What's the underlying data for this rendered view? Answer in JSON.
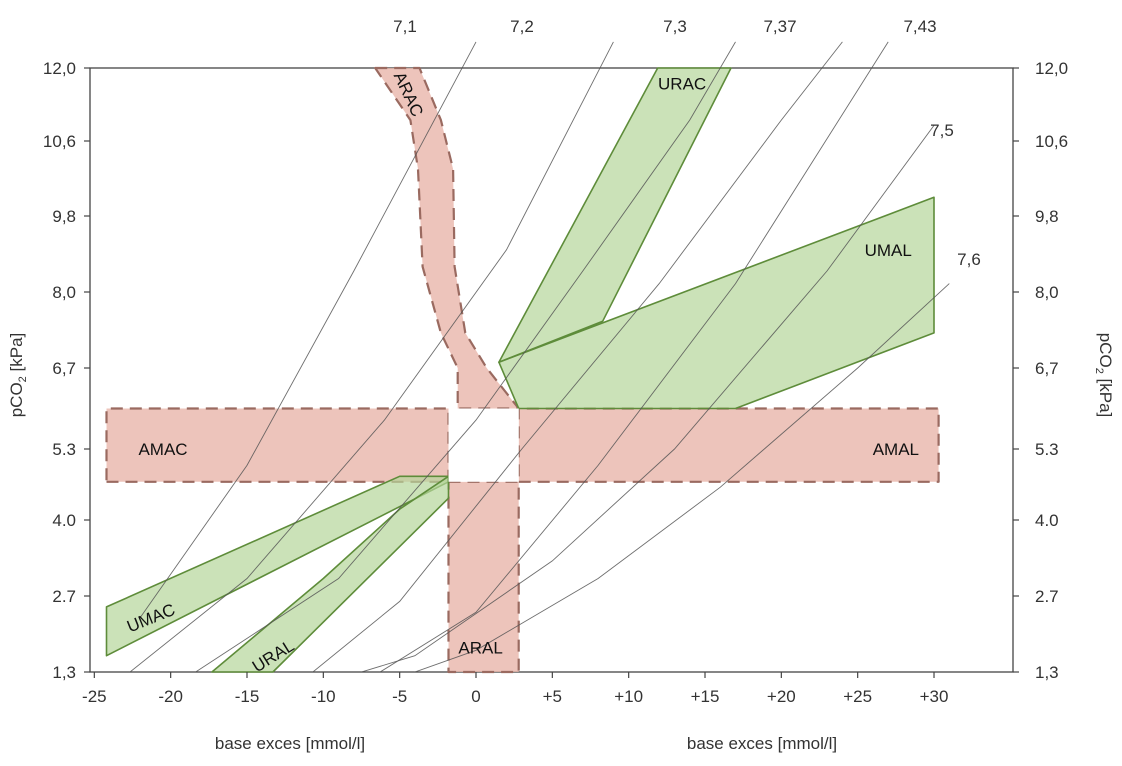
{
  "chart_data": {
    "type": "area",
    "title": "",
    "xlabel": "base exces [mmol/l]",
    "ylabel": "pCO2 [kPa]",
    "x_ticks": [
      "-25",
      "-20",
      "-15",
      "-10",
      "-5",
      "0",
      "+5",
      "+10",
      "+15",
      "+20",
      "+25",
      "+30"
    ],
    "x_tick_values": [
      -25,
      -20,
      -15,
      -10,
      -5,
      0,
      5,
      10,
      15,
      20,
      25,
      30
    ],
    "y_ticks": [
      "1,3",
      "2.7",
      "4.0",
      "5.3",
      "6,7",
      "8,0",
      "9,8",
      "10,6",
      "12,0"
    ],
    "xlim": [
      -26,
      35
    ],
    "colors": {
      "acute": "#e8b5aa",
      "acute_border": "#9a6a60",
      "chronic": "#b5d69a",
      "chronic_border": "#5e8c3a",
      "iso": "#555555"
    },
    "ph_isolines": [
      {
        "label": "7,1",
        "points": [
          [
            -22,
            2.3
          ],
          [
            -15,
            5
          ],
          [
            -8,
            8.5
          ],
          [
            0,
            12.5
          ]
        ]
      },
      {
        "label": "7,2",
        "points": [
          [
            -24,
            1
          ],
          [
            -15,
            3
          ],
          [
            -6,
            5.8
          ],
          [
            2,
            9
          ],
          [
            9,
            12.5
          ]
        ]
      },
      {
        "label": "7,3",
        "points": [
          [
            -20,
            1
          ],
          [
            -9,
            3
          ],
          [
            0,
            5.8
          ],
          [
            7,
            8.5
          ],
          [
            14,
            11
          ],
          [
            17,
            12.5
          ]
        ]
      },
      {
        "label": "7,37",
        "points": [
          [
            -12,
            1
          ],
          [
            -5,
            2.6
          ],
          [
            3,
            5.3
          ],
          [
            12,
            8.2
          ],
          [
            20,
            11
          ],
          [
            24,
            12.5
          ]
        ]
      },
      {
        "label": "7,43",
        "points": [
          [
            -8,
            1
          ],
          [
            0,
            2.4
          ],
          [
            8,
            5
          ],
          [
            17,
            8.2
          ],
          [
            27,
            12.5
          ]
        ]
      },
      {
        "label": "7,5",
        "points": [
          [
            -11,
            1
          ],
          [
            -4,
            1.6
          ],
          [
            5,
            3.3
          ],
          [
            13,
            5.3
          ],
          [
            23,
            8.5
          ],
          [
            30,
            10.9
          ]
        ]
      },
      {
        "label": "7,6",
        "points": [
          [
            -7,
            1
          ],
          [
            0,
            1.7
          ],
          [
            8,
            3
          ],
          [
            16,
            4.6
          ],
          [
            25,
            6.7
          ],
          [
            31,
            8.2
          ]
        ]
      }
    ],
    "zones": [
      {
        "name": "AMAC",
        "kind": "acute",
        "polygon": [
          [
            -24.2,
            4.7
          ],
          [
            -1.8,
            4.7
          ],
          [
            -1.8,
            6.0
          ],
          [
            -24.2,
            6.0
          ]
        ]
      },
      {
        "name": "AMAL",
        "kind": "acute",
        "polygon": [
          [
            2.8,
            4.7
          ],
          [
            30.3,
            4.7
          ],
          [
            30.3,
            6.0
          ],
          [
            2.8,
            6.0
          ]
        ]
      },
      {
        "name": "ARAC",
        "kind": "acute",
        "polygon": [
          [
            -6.6,
            12.0
          ],
          [
            -3.7,
            12.0
          ],
          [
            -2.3,
            11.0
          ],
          [
            -1.5,
            10.3
          ],
          [
            -1.4,
            8.6
          ],
          [
            -0.7,
            7.3
          ],
          [
            0.7,
            6.7
          ],
          [
            2.8,
            6.0
          ],
          [
            -1.2,
            6.0
          ],
          [
            -1.2,
            6.7
          ],
          [
            -2.3,
            7.3
          ],
          [
            -3.5,
            8.6
          ],
          [
            -3.8,
            10.3
          ],
          [
            -4.3,
            11.0
          ]
        ]
      },
      {
        "name": "ARAL",
        "kind": "acute",
        "polygon": [
          [
            -1.8,
            4.7
          ],
          [
            2.8,
            4.7
          ],
          [
            2.8,
            1.3
          ],
          [
            -1.8,
            1.3
          ]
        ]
      },
      {
        "name": "URAC",
        "kind": "chronic",
        "polygon": [
          [
            1.5,
            6.8
          ],
          [
            11.9,
            12.0
          ],
          [
            16.7,
            12.0
          ],
          [
            8.3,
            7.5
          ]
        ]
      },
      {
        "name": "UMAL",
        "kind": "chronic",
        "polygon": [
          [
            1.5,
            6.8
          ],
          [
            30.0,
            10.0
          ],
          [
            30.0,
            7.3
          ],
          [
            17.0,
            6.0
          ],
          [
            2.8,
            6.0
          ]
        ]
      },
      {
        "name": "UMAC",
        "kind": "chronic",
        "polygon": [
          [
            -24.2,
            2.5
          ],
          [
            -5.0,
            4.8
          ],
          [
            -1.8,
            4.8
          ],
          [
            -1.8,
            4.7
          ],
          [
            -24.2,
            1.6
          ]
        ]
      },
      {
        "name": "URAL",
        "kind": "chronic",
        "polygon": [
          [
            -17.3,
            1.3
          ],
          [
            -13.3,
            1.3
          ],
          [
            -1.8,
            4.4
          ],
          [
            -1.8,
            4.8
          ],
          [
            -5.0,
            4.2
          ],
          [
            -10.0,
            3.0
          ]
        ]
      }
    ],
    "zone_labels": [
      {
        "name": "AMAC",
        "at": [
          -20.5,
          5.3
        ],
        "rotate": 0
      },
      {
        "name": "AMAL",
        "at": [
          27.5,
          5.3
        ],
        "rotate": 0
      },
      {
        "name": "ARAC",
        "at": [
          -4.4,
          11.5
        ],
        "rotate": 65
      },
      {
        "name": "ARAL",
        "at": [
          0.3,
          1.75
        ],
        "rotate": 0
      },
      {
        "name": "URAC",
        "at": [
          13.5,
          11.7
        ],
        "rotate": 0
      },
      {
        "name": "UMAL",
        "at": [
          27.0,
          9.0
        ],
        "rotate": 0
      },
      {
        "name": "UMAC",
        "at": [
          -21.3,
          2.3
        ],
        "rotate": -22
      },
      {
        "name": "URAL",
        "at": [
          -13.3,
          1.6
        ],
        "rotate": -32
      }
    ]
  }
}
